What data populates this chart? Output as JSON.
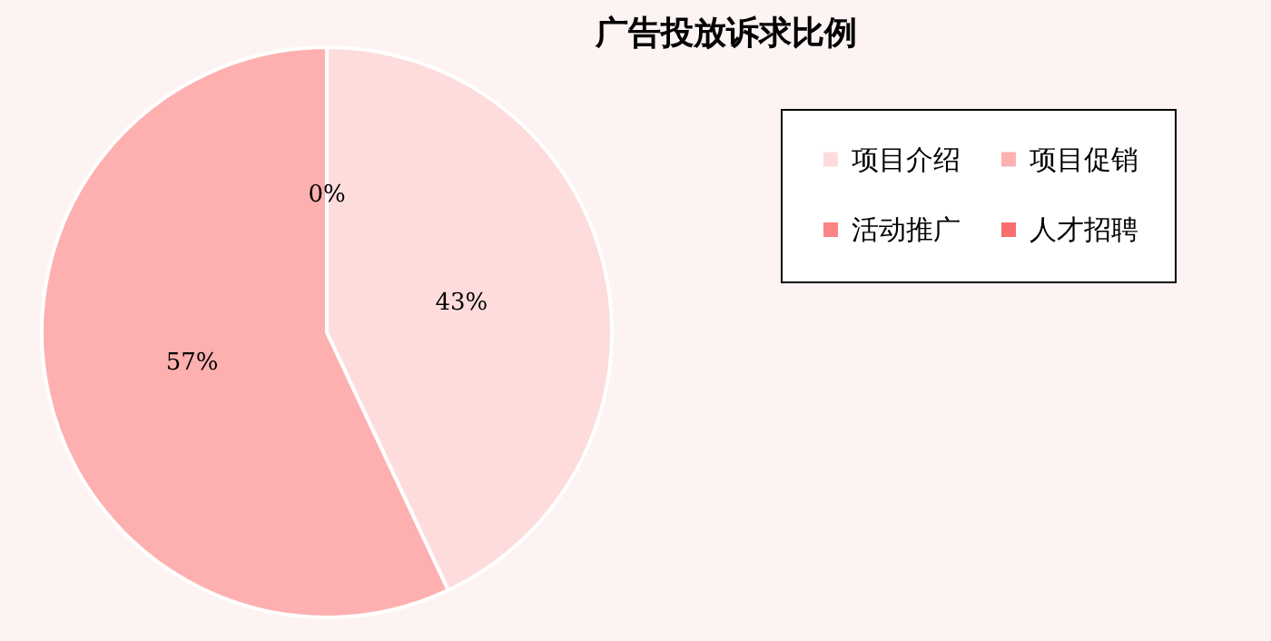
{
  "chart_data": {
    "type": "pie",
    "title": "广告投放诉求比例",
    "categories": [
      "项目介绍",
      "项目促销",
      "活动推广",
      "人才招聘"
    ],
    "values": [
      43,
      57,
      0,
      0
    ],
    "colors": [
      "#fedcdc",
      "#feb0b0",
      "#fc8484",
      "#f86e6e"
    ],
    "value_labels": [
      "43%",
      "57%",
      "0%",
      null
    ],
    "legend": "top right"
  }
}
